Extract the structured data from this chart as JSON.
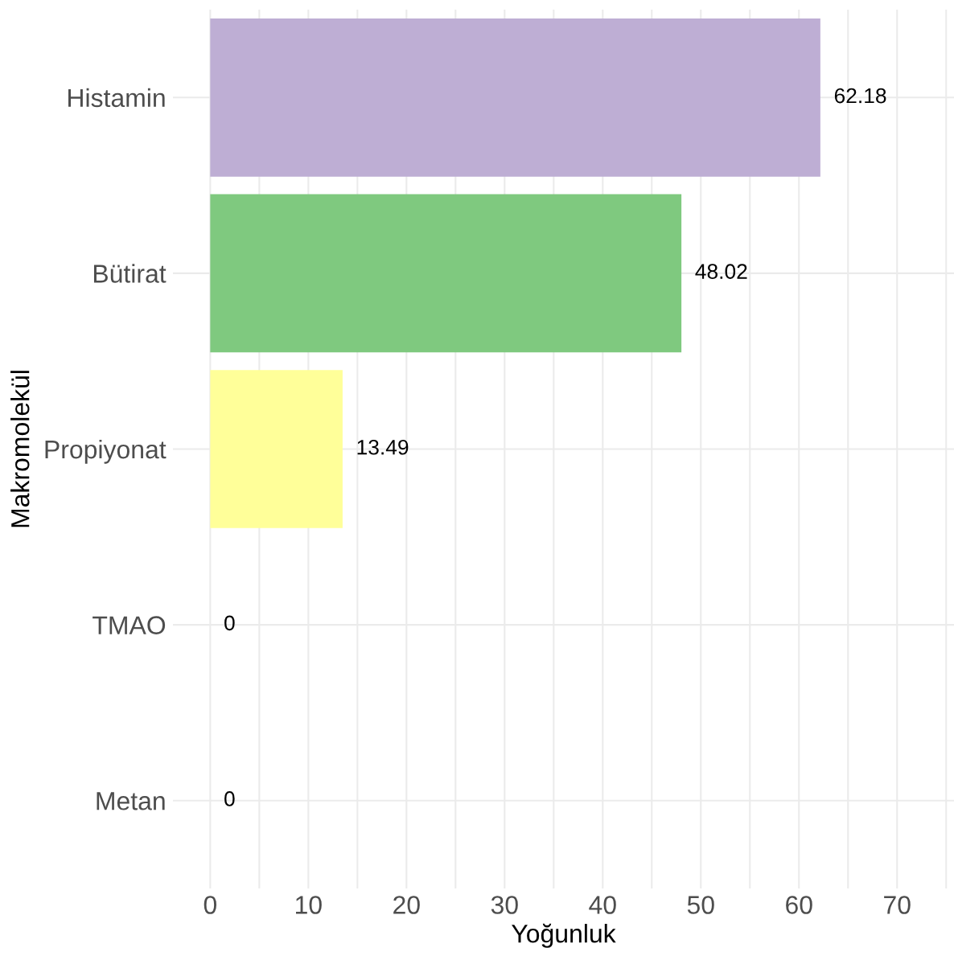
{
  "chart_data": {
    "type": "bar",
    "orientation": "horizontal",
    "xlabel": "Yoğunluk",
    "ylabel": "Makromolekül",
    "categories": [
      "Histamin",
      "Bütirat",
      "Propiyonat",
      "TMAO",
      "Metan"
    ],
    "values": [
      62.18,
      48.02,
      13.49,
      0,
      0
    ],
    "colors": [
      "#beaed4",
      "#7fc97f",
      "#ffff99",
      "#386cb0",
      "#fdc086"
    ],
    "xlim": [
      -3.8,
      75.8
    ],
    "xticks": [
      0,
      {
        "value": 5,
        "label": null
      },
      10,
      {
        "value": 15,
        "label": null
      },
      20,
      {
        "value": 25,
        "label": null
      },
      30,
      {
        "value": 35,
        "label": null
      },
      40,
      {
        "value": 45,
        "label": null
      },
      50,
      {
        "value": 55,
        "label": null
      },
      60,
      {
        "value": 65,
        "label": null
      },
      70,
      {
        "value": 75,
        "label": null
      }
    ],
    "data_labels": true,
    "grid": true
  }
}
